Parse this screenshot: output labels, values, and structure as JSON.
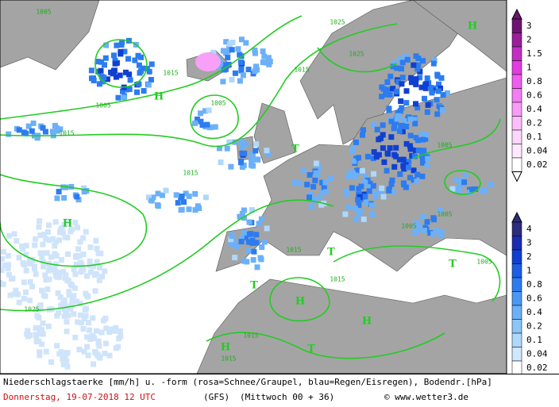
{
  "map": {
    "labels": [
      "H",
      "H",
      "H",
      "H",
      "H",
      "H",
      "T",
      "T",
      "T",
      "T",
      "T",
      "1005",
      "1005",
      "1015",
      "1015",
      "1005",
      "1015",
      "1025",
      "1025",
      "1015",
      "1005",
      "1015",
      "1025",
      "1015",
      "1015",
      "1015",
      "1005",
      "1005",
      "1005"
    ]
  },
  "legend": {
    "snow": {
      "labels": [
        "3",
        "2",
        "1.5",
        "1",
        "0.8",
        "0.6",
        "0.4",
        "0.2",
        "0.1",
        "0.04",
        "0.02"
      ],
      "colors": [
        "#6e1470",
        "#9a1e9c",
        "#c42cc6",
        "#e03ce2",
        "#f05cf0",
        "#f47cf4",
        "#f89cf8",
        "#fbbefb",
        "#fcd6fc",
        "#fde8fd",
        "#ffffff"
      ]
    },
    "rain": {
      "labels": [
        "4",
        "3",
        "2",
        "1",
        "0.8",
        "0.6",
        "0.4",
        "0.2",
        "0.1",
        "0.04",
        "0.02"
      ],
      "colors": [
        "#2c2c7c",
        "#1c2cb0",
        "#1040d0",
        "#1c5ee4",
        "#2c7cf0",
        "#4c96f4",
        "#6cb0f8",
        "#8cc6f8",
        "#aed8fc",
        "#d0e8fc",
        "#ffffff"
      ]
    }
  },
  "footer": {
    "line1": "Niederschlagstaerke [mm/h] u. -form (rosa=Schnee/Graupel, blau=Regen/Eisregen), Bodendr.[hPa]",
    "date": "Donnerstag, 19-07-2018  12 UTC",
    "model": "(GFS)",
    "run": "(Mittwoch 00 + 36)",
    "copyright": "© www.wetter3.de"
  }
}
